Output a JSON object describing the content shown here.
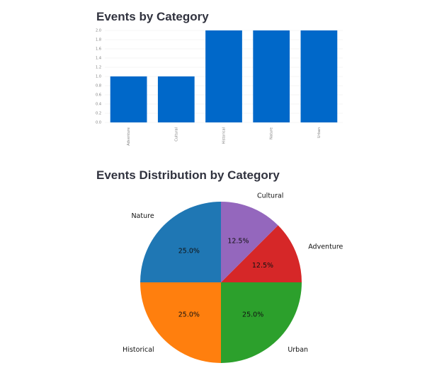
{
  "bar_chart_title": "Events by Category",
  "pie_chart_title": "Events Distribution by Category",
  "chart_data": [
    {
      "type": "bar",
      "title": "Events by Category",
      "categories": [
        "Adventure",
        "Cultural",
        "Historical",
        "Nature",
        "Urban"
      ],
      "values": [
        1,
        1,
        2,
        2,
        2
      ],
      "ylim": [
        0,
        2
      ],
      "yticks": [
        "0.0",
        "0.2",
        "0.4",
        "0.6",
        "0.8",
        "1.0",
        "1.2",
        "1.4",
        "1.6",
        "1.8",
        "2.0"
      ],
      "grid": true,
      "color": "#0068c9"
    },
    {
      "type": "pie",
      "title": "Events Distribution by Category",
      "slices": [
        {
          "label": "Nature",
          "value": 25.0,
          "pct_label": "25.0%",
          "color": "#1f77b4"
        },
        {
          "label": "Historical",
          "value": 25.0,
          "pct_label": "25.0%",
          "color": "#ff7f0e"
        },
        {
          "label": "Urban",
          "value": 25.0,
          "pct_label": "25.0%",
          "color": "#2ca02c"
        },
        {
          "label": "Adventure",
          "value": 12.5,
          "pct_label": "12.5%",
          "color": "#d62728"
        },
        {
          "label": "Cultural",
          "value": 12.5,
          "pct_label": "12.5%",
          "color": "#9467bd"
        }
      ]
    }
  ]
}
